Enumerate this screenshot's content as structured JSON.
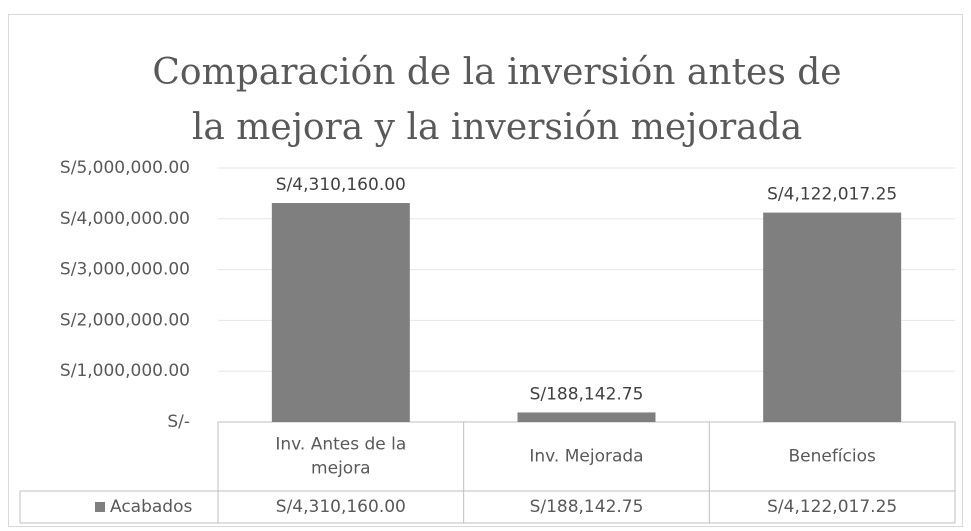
{
  "chart_data": {
    "type": "bar",
    "title": [
      "Comparación de la inversión antes de",
      "la mejora y la inversión mejorada"
    ],
    "categories": [
      [
        "Inv. Antes de la",
        "mejora"
      ],
      [
        "Inv. Mejorada"
      ],
      [
        "Benefícios"
      ]
    ],
    "series": [
      {
        "name": "Acabados",
        "color": "#7f7f7f",
        "values": [
          4310160.0,
          188142.75,
          4122017.25
        ],
        "value_labels": [
          "S/4,310,160.00",
          "S/188,142.75",
          "S/4,122,017.25"
        ]
      }
    ],
    "ylim": [
      0,
      5000000
    ],
    "yticks": [
      {
        "value": 0,
        "label": "S/-"
      },
      {
        "value": 1000000,
        "label": "S/1,000,000.00"
      },
      {
        "value": 2000000,
        "label": "S/2,000,000.00"
      },
      {
        "value": 3000000,
        "label": "S/3,000,000.00"
      },
      {
        "value": 4000000,
        "label": "S/4,000,000.00"
      },
      {
        "value": 5000000,
        "label": "S/5,000,000.00"
      }
    ],
    "grid": true,
    "data_table": true
  }
}
